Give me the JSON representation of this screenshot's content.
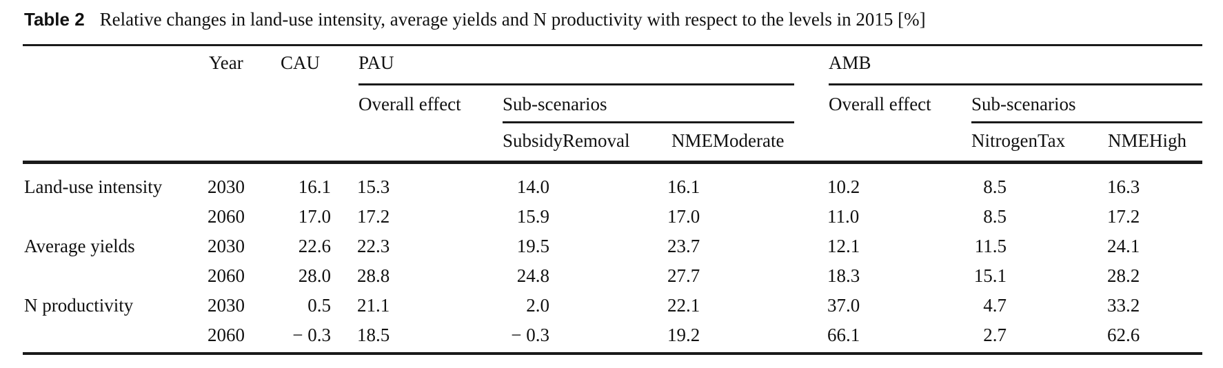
{
  "title": {
    "label": "Table 2",
    "text": "Relative changes in land-use intensity, average yields and N productivity with respect to the levels in 2015 [%]"
  },
  "table": {
    "header": {
      "year": "Year",
      "cau": "CAU",
      "pau": "PAU",
      "amb": "AMB",
      "pau_overall": "Overall effect",
      "pau_sub_group": "Sub-scenarios",
      "amb_overall": "Overall effect",
      "amb_sub_group": "Sub-scenarios",
      "pau_sub1": "SubsidyRemoval",
      "pau_sub2": "NMEModerate",
      "amb_sub1": "NitrogenTax",
      "amb_sub2": "NMEHigh"
    },
    "rows": [
      {
        "label": "Land-use intensity",
        "year": "2030",
        "cau": "16.1",
        "pau_overall": "15.3",
        "subsidy_removal": "14.0",
        "nme_moderate": "16.1",
        "amb_overall": "10.2",
        "nitrogen_tax": "8.5",
        "nme_high": "16.3"
      },
      {
        "label": "",
        "year": "2060",
        "cau": "17.0",
        "pau_overall": "17.2",
        "subsidy_removal": "15.9",
        "nme_moderate": "17.0",
        "amb_overall": "11.0",
        "nitrogen_tax": "8.5",
        "nme_high": "17.2"
      },
      {
        "label": "Average yields",
        "year": "2030",
        "cau": "22.6",
        "pau_overall": "22.3",
        "subsidy_removal": "19.5",
        "nme_moderate": "23.7",
        "amb_overall": "12.1",
        "nitrogen_tax": "11.5",
        "nme_high": "24.1"
      },
      {
        "label": "",
        "year": "2060",
        "cau": "28.0",
        "pau_overall": "28.8",
        "subsidy_removal": "24.8",
        "nme_moderate": "27.7",
        "amb_overall": "18.3",
        "nitrogen_tax": "15.1",
        "nme_high": "28.2"
      },
      {
        "label": "N productivity",
        "year": "2030",
        "cau": "0.5",
        "pau_overall": "21.1",
        "subsidy_removal": "2.0",
        "nme_moderate": "22.1",
        "amb_overall": "37.0",
        "nitrogen_tax": "4.7",
        "nme_high": "33.2"
      },
      {
        "label": "",
        "year": "2060",
        "cau": "− 0.3",
        "pau_overall": "18.5",
        "subsidy_removal": "− 0.3",
        "nme_moderate": "19.2",
        "amb_overall": "66.1",
        "nitrogen_tax": "2.7",
        "nme_high": "62.6"
      }
    ]
  }
}
